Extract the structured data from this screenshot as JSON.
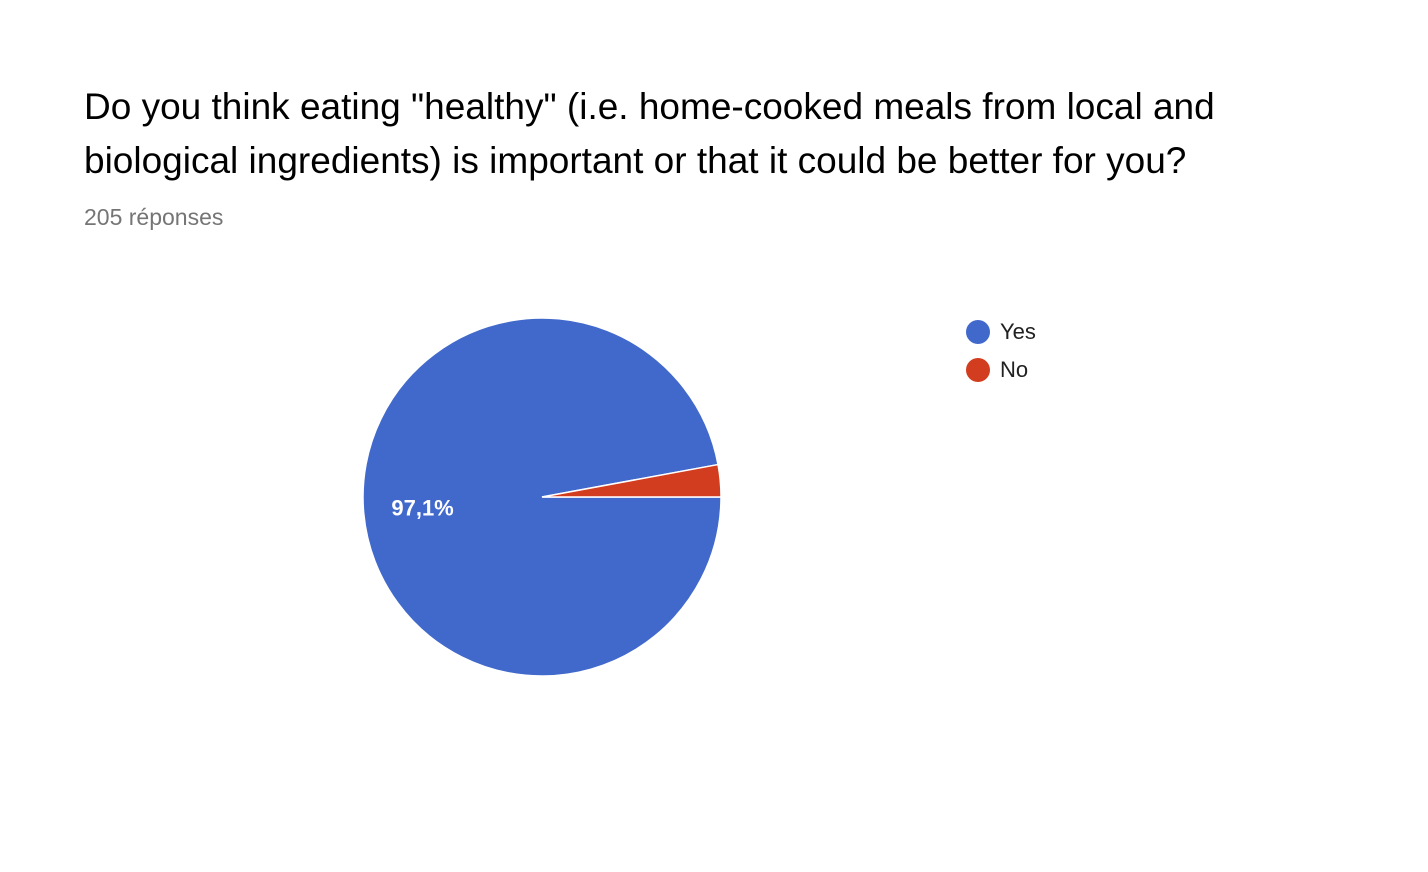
{
  "question": {
    "title": "Do you think eating \"healthy\" (i.e. home-cooked meals from local and biological ingredients) is important or that it could be better for you?",
    "response_count": "205 réponses"
  },
  "chart_data": {
    "type": "pie",
    "title": "Do you think eating \"healthy\" (i.e. home-cooked meals from local and biological ingredients) is important or that it could be better for you?",
    "categories": [
      "Yes",
      "No"
    ],
    "values": [
      97.1,
      2.9
    ],
    "unit": "%",
    "colors": [
      "#4169CB",
      "#D23C1F"
    ],
    "data_labels": [
      "97,1%",
      ""
    ],
    "legend_position": "right"
  }
}
